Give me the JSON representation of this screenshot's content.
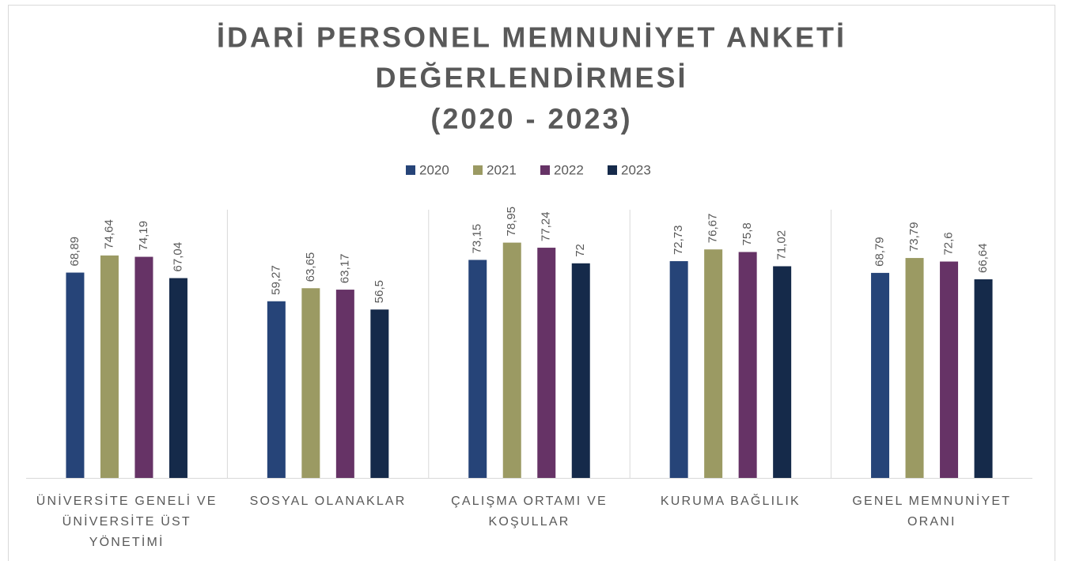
{
  "chart_data": {
    "type": "bar",
    "title": [
      "İDARİ PERSONEL MEMNUNİYET ANKETİ",
      "DEĞERLENDİRMESİ",
      "(2020 - 2023)"
    ],
    "categories": [
      "ÜNİVERSİTE GENELİ VE ÜNİVERSİTE ÜST YÖNETİMİ",
      "SOSYAL OLANAKLAR",
      "ÇALIŞMA ORTAMI VE KOŞULLAR",
      "KURUMA BAĞLILIK",
      "GENEL MEMNUNİYET ORANI"
    ],
    "series": [
      {
        "name": "2020",
        "color": "#264478",
        "values": [
          68.89,
          59.27,
          73.15,
          72.73,
          68.79
        ],
        "value_labels": [
          "68,89",
          "59,27",
          "73,15",
          "72,73",
          "68,79"
        ]
      },
      {
        "name": "2021",
        "color": "#9b9a63",
        "values": [
          74.64,
          63.65,
          78.95,
          76.67,
          73.79
        ],
        "value_labels": [
          "74,64",
          "63,65",
          "78,95",
          "76,67",
          "73,79"
        ]
      },
      {
        "name": "2022",
        "color": "#663366",
        "values": [
          74.19,
          63.17,
          77.24,
          75.8,
          72.6
        ],
        "value_labels": [
          "74,19",
          "63,17",
          "77,24",
          "75,8",
          "72,6"
        ]
      },
      {
        "name": "2023",
        "color": "#152a4a",
        "values": [
          67.04,
          56.5,
          72,
          71.02,
          66.64
        ],
        "value_labels": [
          "67,04",
          "56,5",
          "72",
          "71,02",
          "66,64"
        ]
      }
    ],
    "ylim": [
      0,
      90
    ],
    "legend": "top"
  }
}
